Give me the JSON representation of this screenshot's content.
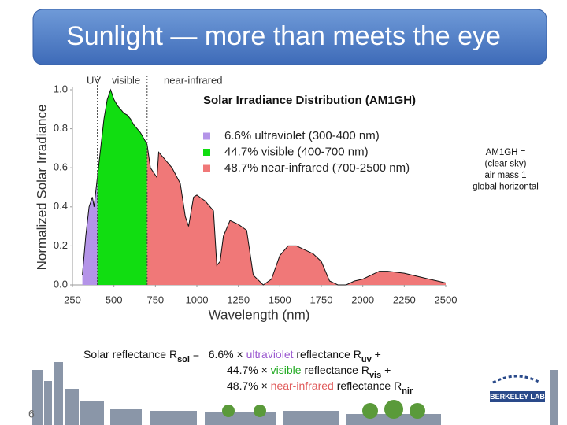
{
  "slide": {
    "title": "Sunlight — more than meets the eye",
    "page": "6",
    "logo": "BERKELEY LAB",
    "note": [
      "AM1GH =",
      "(clear sky)",
      "air mass 1",
      "global horizontal"
    ],
    "equation": [
      [
        {
          "text": "Solar reflectance R"
        },
        {
          "text": "sol",
          "sub": true
        },
        {
          "text": " =   6.6% × "
        },
        {
          "text": "ultraviolet",
          "color": "#9b59d0"
        },
        {
          "text": " reflectance R"
        },
        {
          "text": "uv",
          "sub": true
        },
        {
          "text": " +"
        }
      ],
      [
        {
          "text": "44.7% × "
        },
        {
          "text": "visible",
          "color": "#22aa22"
        },
        {
          "text": " reflectance R"
        },
        {
          "text": "vis",
          "sub": true
        },
        {
          "text": " +"
        }
      ],
      [
        {
          "text": "48.7% × "
        },
        {
          "text": "near-infrared",
          "color": "#e05a5a"
        },
        {
          "text": " reflectance R"
        },
        {
          "text": "nir",
          "sub": true
        }
      ]
    ]
  },
  "chart_data": {
    "type": "area",
    "title": "Solar Irradiance Distribution (AM1GH)",
    "xlabel": "Wavelength (nm)",
    "ylabel": "Normalized Solar Irradiance",
    "regions": [
      "UV",
      "visible",
      "near-infrared"
    ],
    "xlim": [
      250,
      2500
    ],
    "ylim": [
      0,
      1.0
    ],
    "xticks": [
      250,
      500,
      750,
      1000,
      1250,
      1500,
      1750,
      2000,
      2250,
      2500
    ],
    "yticks": [
      {
        "value": 0,
        "label": "0.0"
      },
      0.2,
      0.4,
      0.6,
      0.8,
      {
        "value": 1,
        "label": "1.0"
      }
    ],
    "series": [
      {
        "name": "6.6% ultraviolet (300-400 nm)",
        "color": "#b494e8",
        "x": [
          310,
          330,
          350,
          370,
          380,
          400
        ],
        "values": [
          0.05,
          0.25,
          0.4,
          0.45,
          0.4,
          0.55
        ]
      },
      {
        "name": "44.7% visible (400-700 nm)",
        "color": "#11dd11",
        "x": [
          400,
          420,
          440,
          460,
          480,
          500,
          520,
          540,
          560,
          580,
          600,
          620,
          640,
          660,
          680,
          700
        ],
        "values": [
          0.55,
          0.7,
          0.85,
          0.95,
          1.0,
          0.95,
          0.92,
          0.9,
          0.88,
          0.87,
          0.85,
          0.82,
          0.8,
          0.78,
          0.75,
          0.72
        ]
      },
      {
        "name": "48.7% near-infrared (700-2500 nm)",
        "color": "#f07878",
        "x": [
          700,
          720,
          760,
          770,
          800,
          850,
          900,
          930,
          950,
          980,
          1000,
          1050,
          1100,
          1120,
          1140,
          1160,
          1200,
          1250,
          1300,
          1340,
          1400,
          1450,
          1500,
          1550,
          1600,
          1650,
          1700,
          1750,
          1800,
          1850,
          1900,
          1950,
          2000,
          2050,
          2100,
          2150,
          2200,
          2250,
          2300,
          2350,
          2400,
          2450,
          2500
        ],
        "values": [
          0.72,
          0.6,
          0.55,
          0.68,
          0.65,
          0.6,
          0.52,
          0.35,
          0.3,
          0.45,
          0.46,
          0.43,
          0.38,
          0.1,
          0.12,
          0.25,
          0.33,
          0.31,
          0.28,
          0.05,
          0.0,
          0.03,
          0.15,
          0.2,
          0.2,
          0.18,
          0.16,
          0.12,
          0.02,
          0.0,
          0.0,
          0.02,
          0.03,
          0.05,
          0.07,
          0.07,
          0.065,
          0.06,
          0.05,
          0.04,
          0.03,
          0.02,
          0.01
        ]
      }
    ]
  }
}
